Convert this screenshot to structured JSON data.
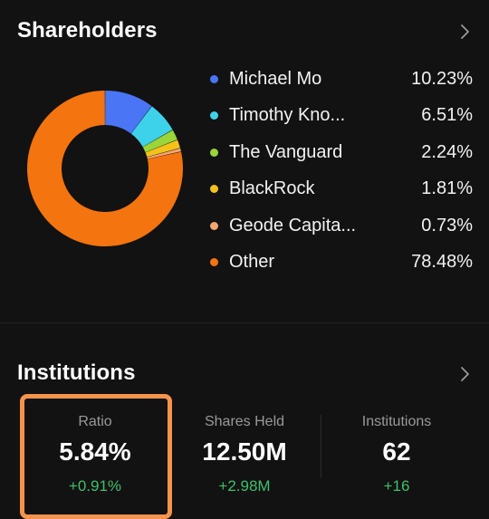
{
  "shareholders": {
    "title": "Shareholders",
    "items": [
      {
        "name": "Michael Mo",
        "pct": "10.23%",
        "value": 10.23,
        "color": "#4a76f5"
      },
      {
        "name": "Timothy Kno...",
        "pct": "6.51%",
        "value": 6.51,
        "color": "#3ed2ea"
      },
      {
        "name": "The Vanguard",
        "pct": "2.24%",
        "value": 2.24,
        "color": "#9bd53a"
      },
      {
        "name": "BlackRock",
        "pct": "1.81%",
        "value": 1.81,
        "color": "#f4c21a"
      },
      {
        "name": "Geode Capita...",
        "pct": "0.73%",
        "value": 0.73,
        "color": "#f5a56f"
      },
      {
        "name": "Other",
        "pct": "78.48%",
        "value": 78.48,
        "color": "#f4740f"
      }
    ]
  },
  "institutions": {
    "title": "Institutions",
    "stats": [
      {
        "label": "Ratio",
        "value": "5.84%",
        "change": "+0.91%"
      },
      {
        "label": "Shares Held",
        "value": "12.50M",
        "change": "+2.98M"
      },
      {
        "label": "Institutions",
        "value": "62",
        "change": "+16"
      }
    ],
    "change_color": "#3fbf6a",
    "highlight_color": "#f7934c"
  }
}
